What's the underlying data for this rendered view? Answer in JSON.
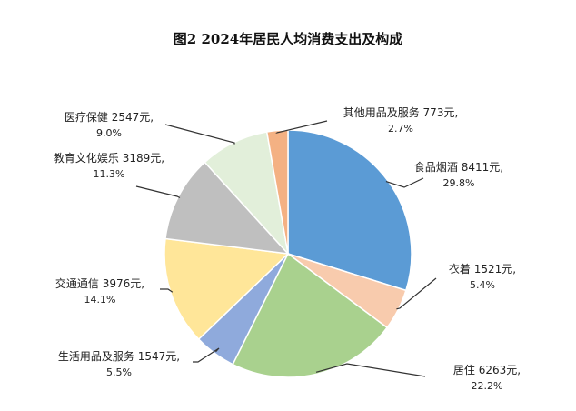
{
  "chart_data": {
    "type": "pie",
    "title": "图2    2024年居民人均消费支出及构成",
    "unit": "元",
    "slices": [
      {
        "name": "食品烟酒",
        "value": 8411,
        "amount_label": "8411元,",
        "percent": 29.8,
        "percent_label": "29.8%",
        "color": "#5b9bd5"
      },
      {
        "name": "衣着",
        "value": 1521,
        "amount_label": "1521元,",
        "percent": 5.4,
        "percent_label": "5.4%",
        "color": "#f8cbad"
      },
      {
        "name": "居住",
        "value": 6263,
        "amount_label": "6263元,",
        "percent": 22.2,
        "percent_label": "22.2%",
        "color": "#a9d18e"
      },
      {
        "name": "生活用品及服务",
        "value": 1547,
        "amount_label": "1547元,",
        "percent": 5.5,
        "percent_label": "5.5%",
        "color": "#8faadc"
      },
      {
        "name": "交通通信",
        "value": 3976,
        "amount_label": "3976元,",
        "percent": 14.1,
        "percent_label": "14.1%",
        "color": "#ffe699"
      },
      {
        "name": "教育文化娱乐",
        "value": 3189,
        "amount_label": "3189元,",
        "percent": 11.3,
        "percent_label": "11.3%",
        "color": "#bfbfbf"
      },
      {
        "name": "医疗保健",
        "value": 2547,
        "amount_label": "2547元,",
        "percent": 9.0,
        "percent_label": "9.0%",
        "color": "#e2efda"
      },
      {
        "name": "其他用品及服务",
        "value": 773,
        "amount_label": "773元,",
        "percent": 2.7,
        "percent_label": "2.7%",
        "color": "#f4b183"
      }
    ]
  }
}
